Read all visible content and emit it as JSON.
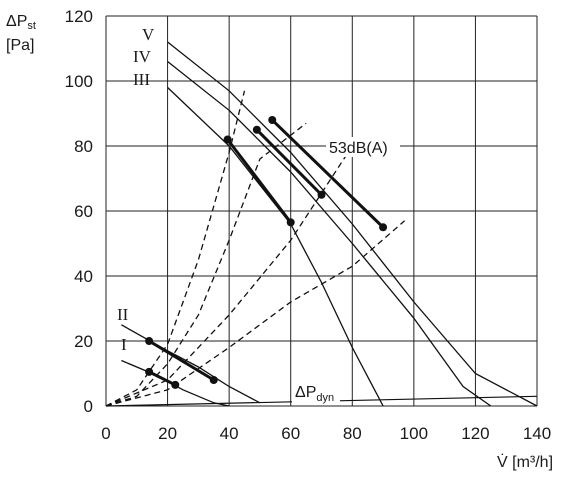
{
  "chart_data": {
    "type": "line",
    "ylabel": "ΔP",
    "ylabel_sub": "st",
    "ylabel_unit": "[Pa]",
    "xlabel": "V̇ [m³/h]",
    "xlim": [
      0,
      140
    ],
    "ylim": [
      0,
      120
    ],
    "x_ticks": [
      0,
      20,
      40,
      60,
      80,
      100,
      120,
      140
    ],
    "y_ticks": [
      0,
      20,
      40,
      60,
      80,
      100,
      120
    ],
    "grid": true,
    "fan_curves": [
      {
        "name": "V",
        "points": [
          [
            20,
            112
          ],
          [
            40,
            97
          ],
          [
            60,
            78
          ],
          [
            80,
            56
          ],
          [
            100,
            32
          ],
          [
            120,
            10
          ],
          [
            140,
            0
          ]
        ]
      },
      {
        "name": "IV",
        "points": [
          [
            20,
            106
          ],
          [
            40,
            91
          ],
          [
            60,
            72
          ],
          [
            80,
            50
          ],
          [
            100,
            27
          ],
          [
            116,
            6
          ],
          [
            125,
            0
          ]
        ]
      },
      {
        "name": "III",
        "points": [
          [
            20,
            98
          ],
          [
            40,
            80
          ],
          [
            60,
            56
          ],
          [
            70,
            38
          ],
          [
            80,
            18
          ],
          [
            90,
            0
          ]
        ]
      },
      {
        "name": "II",
        "points": [
          [
            5,
            25
          ],
          [
            20,
            17
          ],
          [
            30,
            12
          ],
          [
            40,
            6
          ],
          [
            50,
            1
          ]
        ]
      },
      {
        "name": "I",
        "points": [
          [
            5,
            14
          ],
          [
            15,
            10
          ],
          [
            25,
            5
          ],
          [
            35,
            1
          ],
          [
            40,
            0
          ]
        ]
      }
    ],
    "system_curves": [
      {
        "points": [
          [
            0,
            0
          ],
          [
            10,
            5
          ],
          [
            20,
            19
          ],
          [
            30,
            45
          ],
          [
            40,
            78
          ],
          [
            45,
            97
          ]
        ]
      },
      {
        "points": [
          [
            0,
            0
          ],
          [
            10,
            3
          ],
          [
            20,
            13
          ],
          [
            30,
            28
          ],
          [
            40,
            51
          ],
          [
            50,
            76
          ],
          [
            65,
            87
          ]
        ]
      },
      {
        "points": [
          [
            0,
            0
          ],
          [
            20,
            8
          ],
          [
            40,
            28
          ],
          [
            60,
            51
          ],
          [
            80,
            80
          ]
        ]
      },
      {
        "points": [
          [
            0,
            0
          ],
          [
            20,
            5
          ],
          [
            40,
            18
          ],
          [
            60,
            32
          ],
          [
            80,
            43
          ],
          [
            97,
            57
          ]
        ]
      }
    ],
    "operating_segments": [
      {
        "points": [
          [
            39.5,
            82
          ],
          [
            60,
            56.5
          ]
        ]
      },
      {
        "points": [
          [
            49,
            85
          ],
          [
            70,
            65
          ]
        ]
      },
      {
        "points": [
          [
            54,
            88
          ],
          [
            90,
            55
          ]
        ]
      },
      {
        "points": [
          [
            14,
            20
          ],
          [
            35,
            8
          ]
        ]
      },
      {
        "points": [
          [
            14,
            10.5
          ],
          [
            22.5,
            6.5
          ]
        ]
      }
    ],
    "dynamic_pressure": {
      "points": [
        [
          0,
          0
        ],
        [
          140,
          3
        ]
      ]
    },
    "annotations": {
      "noise_label": "53dB(A)",
      "dyn_label": "ΔP",
      "dyn_label_sub": "dyn"
    }
  }
}
